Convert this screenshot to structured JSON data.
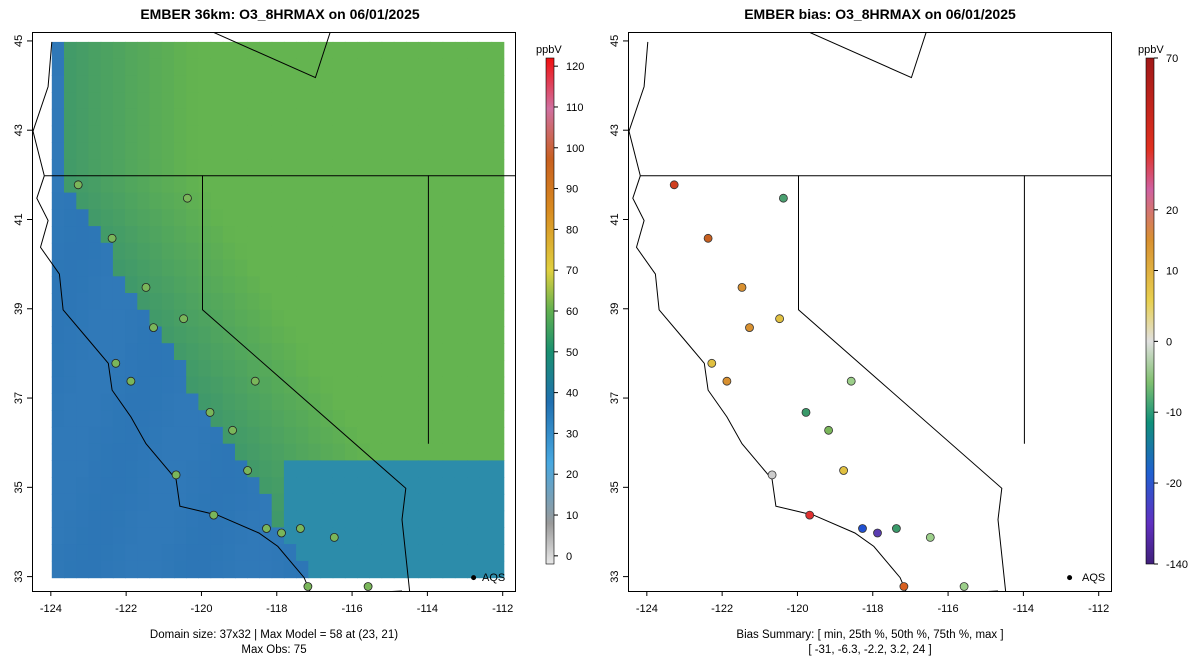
{
  "left": {
    "title": "EMBER 36km: O3_8HRMAX on 06/01/2025",
    "footer_line1": "Domain size: 37x32 | Max Model = 58 at (23, 21)",
    "footer_line2": "Max Obs: 75",
    "colorbar": {
      "title": "ppbV",
      "ticks": [
        "0",
        "10",
        "20",
        "30",
        "40",
        "50",
        "60",
        "70",
        "80",
        "90",
        "100",
        "110",
        "120"
      ],
      "tick_values": [
        0,
        10,
        20,
        30,
        40,
        50,
        60,
        70,
        80,
        90,
        100,
        110,
        120
      ],
      "range": [
        -2,
        122
      ]
    }
  },
  "right": {
    "title": "EMBER bias: O3_8HRMAX on 06/01/2025",
    "footer_line1": "Bias Summary: [ min, 25th %, 50th %, 75th %, max ]",
    "footer_line2": "[ -31,   -6.3,   -2.2,   3.2,   24 ]",
    "colorbar": {
      "title": "ppbV",
      "ticks": [
        "70",
        "20",
        "10",
        "0",
        "-10",
        "-20",
        "-140"
      ],
      "tick_positions": [
        0.0,
        0.3,
        0.42,
        0.56,
        0.7,
        0.84,
        1.0
      ]
    }
  },
  "axes": {
    "x_ticks": [
      "-124",
      "-122",
      "-120",
      "-118",
      "-116",
      "-114",
      "-112"
    ],
    "x_values": [
      -124,
      -122,
      -120,
      -118,
      -116,
      -114,
      -112
    ],
    "y_ticks": [
      "33",
      "35",
      "37",
      "39",
      "41",
      "43",
      "45"
    ],
    "y_values": [
      33,
      35,
      37,
      39,
      41,
      43,
      45
    ],
    "lon_range": [
      -124.5,
      -111.7
    ],
    "lat_range": [
      32.7,
      45.2
    ]
  },
  "legend": {
    "aqs_label": "AQS"
  },
  "colors": {
    "ocean": "#2b78b4",
    "land_base": "#3a9a80"
  }
}
